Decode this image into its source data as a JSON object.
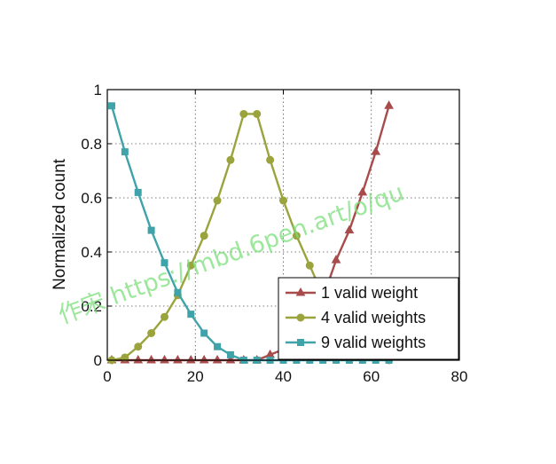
{
  "chart_data": {
    "type": "line",
    "xlabel": "",
    "ylabel": "Normalized count",
    "xlim": [
      0,
      80
    ],
    "ylim": [
      0,
      1
    ],
    "xticks": [
      "0",
      "20",
      "40",
      "60",
      "80"
    ],
    "yticks": [
      "0",
      "0.2",
      "0.4",
      "0.6",
      "0.8",
      "1"
    ],
    "grid": true,
    "legend_position": "bottom-right",
    "series": [
      {
        "name": "1 valid weight",
        "marker": "triangle",
        "color": "#a84b4b",
        "x": [
          1,
          4,
          7,
          10,
          13,
          16,
          19,
          22,
          25,
          28,
          31,
          34,
          37,
          40,
          43,
          46,
          49,
          52,
          55,
          58,
          61,
          64
        ],
        "y": [
          0,
          0,
          0,
          0,
          0,
          0,
          0,
          0,
          0,
          0,
          0,
          0,
          0.02,
          0.04,
          0.08,
          0.14,
          0.23,
          0.37,
          0.48,
          0.62,
          0.77,
          0.94
        ]
      },
      {
        "name": "4 valid weights",
        "marker": "circle",
        "color": "#9aa33c",
        "x": [
          1,
          4,
          7,
          10,
          13,
          16,
          19,
          22,
          25,
          28,
          31,
          34,
          37,
          40,
          43,
          46,
          49,
          52,
          55,
          58,
          61,
          64
        ],
        "y": [
          0,
          0.01,
          0.05,
          0.1,
          0.16,
          0.24,
          0.35,
          0.46,
          0.59,
          0.74,
          0.91,
          0.91,
          0.74,
          0.59,
          0.46,
          0.35,
          0.24,
          0.16,
          0.1,
          0.05,
          0.01,
          0
        ]
      },
      {
        "name": "9 valid weights",
        "marker": "square",
        "color": "#3fa3a9",
        "x": [
          1,
          4,
          7,
          10,
          13,
          16,
          19,
          22,
          25,
          28,
          31,
          34,
          37,
          40,
          43,
          46,
          49,
          52,
          55,
          58,
          61,
          64
        ],
        "y": [
          0.94,
          0.77,
          0.62,
          0.48,
          0.36,
          0.25,
          0.17,
          0.1,
          0.05,
          0.02,
          0,
          0,
          0,
          0,
          0,
          0,
          0,
          0,
          0,
          0,
          0,
          0
        ]
      }
    ]
  },
  "watermark": "作宋 https://mbd.6pen.art/o/qu"
}
